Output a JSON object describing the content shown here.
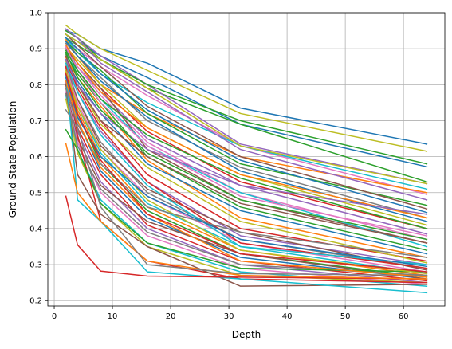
{
  "chart_data": {
    "type": "line",
    "title": "",
    "xlabel": "Depth",
    "ylabel": "Ground State Population",
    "xlim": [
      -1.1,
      67.1
    ],
    "ylim": [
      0.185,
      1.0
    ],
    "xticks": [
      0,
      10,
      20,
      30,
      40,
      50,
      60
    ],
    "yticks": [
      0.2,
      0.3,
      0.4,
      0.5,
      0.6,
      0.7,
      0.8,
      0.9,
      1.0
    ],
    "xtick_labels": [
      "0",
      "10",
      "20",
      "30",
      "40",
      "50",
      "60"
    ],
    "ytick_labels": [
      "0.2",
      "0.3",
      "0.4",
      "0.5",
      "0.6",
      "0.7",
      "0.8",
      "0.9",
      "1.0"
    ],
    "grid": true,
    "legend": "none",
    "x": [
      2,
      4,
      8,
      16,
      32,
      64
    ],
    "series": [
      {
        "color": "#1f77b4",
        "values": [
          0.95,
          0.94,
          0.9,
          0.86,
          0.735,
          0.635
        ]
      },
      {
        "color": "#bcbd22",
        "values": [
          0.965,
          0.94,
          0.9,
          0.84,
          0.72,
          0.615
        ]
      },
      {
        "color": "#1f77b4",
        "values": [
          0.94,
          0.92,
          0.88,
          0.82,
          0.69,
          0.572
        ]
      },
      {
        "color": "#2ca02c",
        "values": [
          0.93,
          0.91,
          0.87,
          0.79,
          0.69,
          0.53
        ]
      },
      {
        "color": "#e377c2",
        "values": [
          0.92,
          0.9,
          0.85,
          0.77,
          0.63,
          0.495
        ]
      },
      {
        "color": "#9467bd",
        "values": [
          0.95,
          0.93,
          0.88,
          0.8,
          0.635,
          0.525
        ]
      },
      {
        "color": "#17becf",
        "values": [
          0.93,
          0.89,
          0.83,
          0.75,
          0.63,
          0.51
        ]
      },
      {
        "color": "#ff7f0e",
        "values": [
          0.925,
          0.88,
          0.8,
          0.72,
          0.6,
          0.5
        ]
      },
      {
        "color": "#2ca02c",
        "values": [
          0.92,
          0.89,
          0.84,
          0.72,
          0.58,
          0.465
        ]
      },
      {
        "color": "#8c564b",
        "values": [
          0.94,
          0.91,
          0.85,
          0.74,
          0.6,
          0.455
        ]
      },
      {
        "color": "#1f77b4",
        "values": [
          0.93,
          0.9,
          0.83,
          0.73,
          0.59,
          0.445
        ]
      },
      {
        "color": "#7f7f7f",
        "values": [
          0.915,
          0.88,
          0.82,
          0.7,
          0.57,
          0.43
        ]
      },
      {
        "color": "#bcbd22",
        "values": [
          0.905,
          0.87,
          0.8,
          0.68,
          0.55,
          0.41
        ]
      },
      {
        "color": "#d62728",
        "values": [
          0.91,
          0.86,
          0.79,
          0.67,
          0.53,
          0.4
        ]
      },
      {
        "color": "#9467bd",
        "values": [
          0.9,
          0.85,
          0.78,
          0.65,
          0.52,
          0.385
        ]
      },
      {
        "color": "#e377c2",
        "values": [
          0.89,
          0.85,
          0.77,
          0.64,
          0.5,
          0.37
        ]
      },
      {
        "color": "#8c564b",
        "values": [
          0.9,
          0.86,
          0.79,
          0.62,
          0.48,
          0.36
        ]
      },
      {
        "color": "#17becf",
        "values": [
          0.88,
          0.84,
          0.76,
          0.63,
          0.5,
          0.35
        ]
      },
      {
        "color": "#2ca02c",
        "values": [
          0.885,
          0.83,
          0.75,
          0.6,
          0.46,
          0.34
        ]
      },
      {
        "color": "#ff7f0e",
        "values": [
          0.875,
          0.82,
          0.74,
          0.59,
          0.43,
          0.32
        ]
      },
      {
        "color": "#1f77b4",
        "values": [
          0.87,
          0.81,
          0.72,
          0.58,
          0.45,
          0.33
        ]
      },
      {
        "color": "#d62728",
        "values": [
          0.86,
          0.8,
          0.7,
          0.55,
          0.4,
          0.31
        ]
      },
      {
        "color": "#bcbd22",
        "values": [
          0.865,
          0.8,
          0.69,
          0.57,
          0.42,
          0.305
        ]
      },
      {
        "color": "#9467bd",
        "values": [
          0.85,
          0.78,
          0.67,
          0.53,
          0.38,
          0.3
        ]
      },
      {
        "color": "#7f7f7f",
        "values": [
          0.855,
          0.76,
          0.64,
          0.5,
          0.37,
          0.29
        ]
      },
      {
        "color": "#8c564b",
        "values": [
          0.84,
          0.76,
          0.63,
          0.51,
          0.39,
          0.285
        ]
      },
      {
        "color": "#e377c2",
        "values": [
          0.845,
          0.75,
          0.62,
          0.49,
          0.36,
          0.28
        ]
      },
      {
        "color": "#17becf",
        "values": [
          0.83,
          0.74,
          0.61,
          0.47,
          0.35,
          0.275
        ]
      },
      {
        "color": "#ff7f0e",
        "values": [
          0.835,
          0.73,
          0.6,
          0.46,
          0.34,
          0.27
        ]
      },
      {
        "color": "#2ca02c",
        "values": [
          0.82,
          0.72,
          0.58,
          0.45,
          0.33,
          0.265
        ]
      },
      {
        "color": "#1f77b4",
        "values": [
          0.81,
          0.7,
          0.56,
          0.43,
          0.32,
          0.26
        ]
      },
      {
        "color": "#d62728",
        "values": [
          0.8,
          0.68,
          0.55,
          0.41,
          0.31,
          0.255
        ]
      },
      {
        "color": "#9467bd",
        "values": [
          0.805,
          0.67,
          0.53,
          0.4,
          0.3,
          0.25
        ]
      },
      {
        "color": "#8c564b",
        "values": [
          0.79,
          0.65,
          0.52,
          0.42,
          0.33,
          0.26
        ]
      },
      {
        "color": "#e377c2",
        "values": [
          0.78,
          0.64,
          0.5,
          0.38,
          0.29,
          0.245
        ]
      },
      {
        "color": "#17becf",
        "values": [
          0.77,
          0.62,
          0.48,
          0.36,
          0.28,
          0.24
        ]
      },
      {
        "color": "#7f7f7f",
        "values": [
          0.775,
          0.63,
          0.51,
          0.39,
          0.3,
          0.27
        ]
      },
      {
        "color": "#bcbd22",
        "values": [
          0.76,
          0.61,
          0.47,
          0.35,
          0.27,
          0.25
        ]
      },
      {
        "color": "#d62728",
        "values": [
          0.85,
          0.66,
          0.42,
          0.31,
          0.26,
          0.25
        ]
      },
      {
        "color": "#8c564b",
        "values": [
          0.8,
          0.55,
          0.44,
          0.35,
          0.24,
          0.245
        ]
      },
      {
        "color": "#17becf",
        "values": [
          0.83,
          0.48,
          0.42,
          0.28,
          0.26,
          0.222
        ]
      },
      {
        "color": "#d62728",
        "values": [
          0.49,
          0.355,
          0.282,
          0.268,
          0.265,
          0.26
        ]
      },
      {
        "color": "#2ca02c",
        "values": [
          0.675,
          0.62,
          0.47,
          0.36,
          0.29,
          0.28
        ]
      },
      {
        "color": "#ff7f0e",
        "values": [
          0.636,
          0.5,
          0.42,
          0.31,
          0.27,
          0.26
        ]
      },
      {
        "color": "#7f7f7f",
        "values": [
          0.73,
          0.68,
          0.46,
          0.3,
          0.275,
          0.27
        ]
      },
      {
        "color": "#2ca02c",
        "values": [
          0.95,
          0.93,
          0.87,
          0.8,
          0.7,
          0.58
        ]
      },
      {
        "color": "#bcbd22",
        "values": [
          0.94,
          0.92,
          0.87,
          0.79,
          0.63,
          0.525
        ]
      },
      {
        "color": "#9467bd",
        "values": [
          0.955,
          0.93,
          0.86,
          0.78,
          0.62,
          0.48
        ]
      },
      {
        "color": "#1f77b4",
        "values": [
          0.92,
          0.88,
          0.81,
          0.71,
          0.56,
          0.42
        ]
      },
      {
        "color": "#ff7f0e",
        "values": [
          0.91,
          0.86,
          0.78,
          0.68,
          0.55,
          0.43
        ]
      },
      {
        "color": "#e377c2",
        "values": [
          0.905,
          0.84,
          0.75,
          0.63,
          0.49,
          0.38
        ]
      },
      {
        "color": "#2ca02c",
        "values": [
          0.895,
          0.84,
          0.76,
          0.66,
          0.54,
          0.4
        ]
      },
      {
        "color": "#d62728",
        "values": [
          0.87,
          0.79,
          0.68,
          0.53,
          0.36,
          0.29
        ]
      },
      {
        "color": "#17becf",
        "values": [
          0.86,
          0.78,
          0.66,
          0.52,
          0.35,
          0.3
        ]
      },
      {
        "color": "#8c564b",
        "values": [
          0.88,
          0.8,
          0.7,
          0.6,
          0.47,
          0.36
        ]
      },
      {
        "color": "#bcbd22",
        "values": [
          0.84,
          0.74,
          0.62,
          0.48,
          0.34,
          0.275
        ]
      },
      {
        "color": "#7f7f7f",
        "values": [
          0.79,
          0.69,
          0.58,
          0.46,
          0.39,
          0.32
        ]
      },
      {
        "color": "#1f77b4",
        "values": [
          0.82,
          0.71,
          0.6,
          0.49,
          0.37,
          0.295
        ]
      },
      {
        "color": "#ff7f0e",
        "values": [
          0.81,
          0.7,
          0.57,
          0.44,
          0.31,
          0.265
        ]
      },
      {
        "color": "#9467bd",
        "values": [
          0.87,
          0.8,
          0.72,
          0.62,
          0.52,
          0.44
        ]
      },
      {
        "color": "#2ca02c",
        "values": [
          0.89,
          0.82,
          0.73,
          0.61,
          0.48,
          0.37
        ]
      },
      {
        "color": "#d62728",
        "values": [
          0.83,
          0.72,
          0.59,
          0.44,
          0.33,
          0.28
        ]
      }
    ]
  }
}
